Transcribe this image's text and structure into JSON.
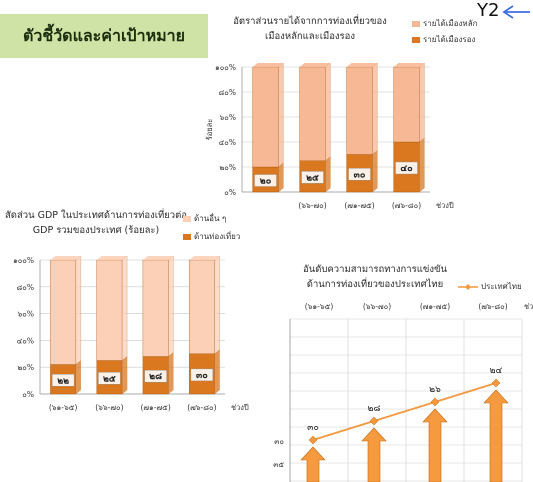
{
  "header": {
    "title": "ตัวชี้วัดและค่าเป้าหมาย",
    "y2_label": "Y2"
  },
  "colors": {
    "share_main": "#f7b895",
    "share_secondary": "#d9781f",
    "gdp_other": "#fbd0b6",
    "gdp_tourism": "#d9781f",
    "line": "#f3983f",
    "arrow": "#f59a3e",
    "title_bg": "#cfe3a6",
    "y2_arrow": "#3d6fe0"
  },
  "chart_data": [
    {
      "type": "bar",
      "stacked": true,
      "title_lines": [
        "อัตราส่วนรายได้จากการท่องเที่ยวของ",
        "เมืองหลักและเมืองรอง"
      ],
      "ylabel": "ร้อยละ",
      "xlabel": "",
      "y_ticks": [
        "๑๐๐%",
        "๘๐%",
        "๖๐%",
        "๔๐%",
        "๒๐%",
        "๐%"
      ],
      "ylim": [
        0,
        100
      ],
      "categories": [
        "",
        "(๖๖-๗๐)",
        "(๗๑-๗๕)",
        "(๗๖-๘๐)"
      ],
      "x_suffix": "ช่วงปี",
      "series": [
        {
          "name": "รายได้เมืองรอง",
          "values": [
            20,
            25,
            30,
            40
          ],
          "labels": [
            "๒๐",
            "๒๕",
            "๓๐",
            "๔๐"
          ],
          "color": "#d9781f"
        },
        {
          "name": "รายได้เมืองหลัก",
          "values": [
            80,
            75,
            70,
            60
          ],
          "color": "#f7b895"
        }
      ],
      "legend": [
        "รายได้เมืองหลัก",
        "รายได้เมืองรอง"
      ]
    },
    {
      "type": "bar",
      "stacked": true,
      "title_lines": [
        "สัดส่วน GDP ในประเทศด้านการท่องเที่ยวต่อ",
        "GDP รวมของประเทศ (ร้อยละ)"
      ],
      "ylabel": "",
      "xlabel": "",
      "y_ticks": [
        "๑๐๐%",
        "๘๐%",
        "๖๐%",
        "๔๐%",
        "๒๐%",
        "๐%"
      ],
      "ylim": [
        0,
        100
      ],
      "categories": [
        "(๖๑-๖๕)",
        "(๖๖-๗๐)",
        "(๗๑-๗๕)",
        "(๗๖-๘๐)"
      ],
      "x_suffix": "ช่วงปี",
      "series": [
        {
          "name": "ด้านท่องเที่ยว",
          "values": [
            22,
            25,
            28,
            30
          ],
          "labels": [
            "๒๒",
            "๒๕",
            "๒๘",
            "๓๐"
          ],
          "color": "#d9781f"
        },
        {
          "name": "ด้านอื่น ๆ",
          "values": [
            78,
            75,
            72,
            70
          ],
          "color": "#fbd0b6"
        }
      ],
      "legend": [
        "ด้านอื่น ๆ",
        "ด้านท่องเที่ยว"
      ]
    },
    {
      "type": "line",
      "title_lines": [
        "อันดับความสามารถทางการแข่งขัน",
        "ด้านการท่องเที่ยวของประเทศไทย"
      ],
      "categories": [
        "(๖๑-๖๕)",
        "(๖๖-๗๐)",
        "(๗๑-๗๕)",
        "(๗๖-๘๐)"
      ],
      "x_suffix": "ช่ว",
      "y_ticks": [
        "๓๐",
        "๓๕"
      ],
      "series": [
        {
          "name": "ประเทศไทย",
          "values": [
            30,
            28,
            26,
            24
          ],
          "labels": [
            "๓๐",
            "๒๘",
            "๒๖",
            "๒๔"
          ],
          "color": "#f3983f"
        }
      ],
      "legend": [
        "ประเทศไทย"
      ]
    }
  ]
}
